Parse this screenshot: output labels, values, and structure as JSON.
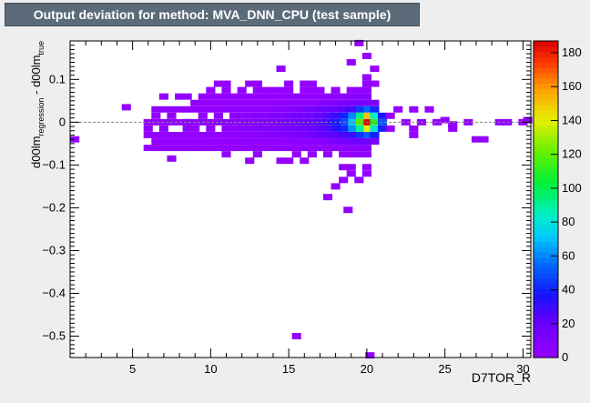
{
  "window": {
    "title": "Output deviation for method: MVA_DNN_CPU (test sample)"
  },
  "chart_data": {
    "type": "heatmap",
    "xlabel": "D7TOR_R",
    "ylabel_main": "d00lm",
    "ylabel_sub1": "regression",
    "ylabel_mid": " - d00lm",
    "ylabel_sub2": "true",
    "xlim": [
      1,
      30.5
    ],
    "ylim": [
      -0.55,
      0.19
    ],
    "xticks": [
      5,
      10,
      15,
      20,
      25,
      30
    ],
    "yticks": [
      0.1,
      0,
      -0.1,
      -0.2,
      -0.3,
      -0.4,
      -0.5
    ],
    "ytick_labels": [
      "0.1",
      "0",
      "−0.1",
      "−0.2",
      "−0.3",
      "−0.4",
      "−0.5"
    ],
    "zlim": [
      0,
      187
    ],
    "zticks": [
      0,
      20,
      40,
      60,
      80,
      100,
      120,
      140,
      160,
      180
    ],
    "reference_line_y": 0,
    "bin_width_x": 0.59,
    "bin_height_y": 0.0148,
    "cells": [
      [
        20,
        0.0,
        187
      ],
      [
        20,
        0.015,
        150
      ],
      [
        20,
        -0.015,
        140
      ],
      [
        19.5,
        0.0,
        120
      ],
      [
        20.5,
        0.0,
        110
      ],
      [
        19.5,
        0.015,
        95
      ],
      [
        20.5,
        0.015,
        85
      ],
      [
        19.5,
        -0.015,
        90
      ],
      [
        20.5,
        -0.015,
        80
      ],
      [
        19,
        0.0,
        70
      ],
      [
        19,
        0.015,
        60
      ],
      [
        19,
        -0.015,
        62
      ],
      [
        20,
        0.03,
        55
      ],
      [
        20,
        -0.03,
        52
      ],
      [
        21,
        0.0,
        50
      ],
      [
        21,
        0.015,
        38
      ],
      [
        21,
        -0.015,
        40
      ],
      [
        19.5,
        0.03,
        45
      ],
      [
        20.5,
        0.03,
        42
      ],
      [
        19.5,
        -0.03,
        44
      ],
      [
        20.5,
        -0.03,
        40
      ],
      [
        18.5,
        0.0,
        48
      ],
      [
        18.5,
        0.015,
        40
      ],
      [
        18.5,
        -0.015,
        42
      ],
      [
        18,
        0.0,
        38
      ],
      [
        18,
        0.015,
        32
      ],
      [
        18,
        -0.015,
        34
      ],
      [
        17.5,
        0.0,
        30
      ],
      [
        17.5,
        0.015,
        26
      ],
      [
        17.5,
        -0.015,
        27
      ],
      [
        17,
        0.0,
        26
      ],
      [
        17,
        0.015,
        22
      ],
      [
        17,
        -0.015,
        24
      ],
      [
        16.5,
        0.0,
        22
      ],
      [
        16.5,
        0.015,
        18
      ],
      [
        16.5,
        -0.015,
        20
      ],
      [
        16,
        0.0,
        20
      ],
      [
        16,
        0.015,
        16
      ],
      [
        16,
        -0.015,
        18
      ],
      [
        15.5,
        0.0,
        18
      ],
      [
        15.5,
        0.015,
        15
      ],
      [
        15.5,
        -0.015,
        16
      ],
      [
        15,
        0.0,
        16
      ],
      [
        15,
        0.015,
        12
      ],
      [
        15,
        -0.015,
        14
      ],
      [
        14.5,
        0.0,
        14
      ],
      [
        14.5,
        0.015,
        10
      ],
      [
        14.5,
        -0.015,
        12
      ],
      [
        14,
        0.0,
        12
      ],
      [
        14,
        0.015,
        9
      ],
      [
        14,
        -0.015,
        10
      ],
      [
        13.5,
        0.0,
        10
      ],
      [
        13.5,
        0.015,
        8
      ],
      [
        13.5,
        -0.015,
        9
      ],
      [
        13,
        0.0,
        9
      ],
      [
        13,
        0.015,
        7
      ],
      [
        13,
        -0.015,
        8
      ],
      [
        12.5,
        0.0,
        8
      ],
      [
        12.5,
        0.015,
        6
      ],
      [
        12.5,
        -0.015,
        7
      ],
      [
        12,
        0.0,
        7
      ],
      [
        12,
        0.015,
        5
      ],
      [
        12,
        -0.015,
        6
      ],
      [
        11.5,
        0.0,
        6
      ],
      [
        11.5,
        0.015,
        5
      ],
      [
        11.5,
        -0.015,
        5
      ],
      [
        11,
        0.0,
        6
      ],
      [
        11,
        -0.015,
        5
      ],
      [
        10.5,
        0.0,
        5
      ],
      [
        10.5,
        0.015,
        4
      ],
      [
        10,
        0.0,
        5
      ],
      [
        10,
        -0.015,
        4
      ],
      [
        9.5,
        0.0,
        4
      ],
      [
        9.5,
        0.015,
        3
      ],
      [
        9,
        0.0,
        4
      ],
      [
        9,
        -0.015,
        3
      ],
      [
        8.5,
        0.0,
        6
      ],
      [
        8.5,
        -0.015,
        3
      ],
      [
        8,
        0.0,
        3
      ],
      [
        7.5,
        0.0,
        3
      ],
      [
        7.5,
        0.015,
        2
      ],
      [
        7,
        0.0,
        3
      ],
      [
        7,
        -0.015,
        2
      ],
      [
        6.5,
        0.0,
        2
      ],
      [
        6.5,
        0.015,
        2
      ],
      [
        6,
        0.0,
        2
      ],
      [
        6,
        -0.015,
        2
      ],
      [
        17,
        0.03,
        18
      ],
      [
        17.5,
        0.03,
        20
      ],
      [
        18,
        0.03,
        22
      ],
      [
        18.5,
        0.03,
        25
      ],
      [
        19,
        0.03,
        28
      ],
      [
        16.5,
        0.03,
        14
      ],
      [
        16,
        0.03,
        12
      ],
      [
        15.5,
        0.03,
        10
      ],
      [
        15,
        0.03,
        9
      ],
      [
        14.5,
        0.03,
        8
      ],
      [
        14,
        0.03,
        6
      ],
      [
        13.5,
        0.03,
        5
      ],
      [
        13,
        0.03,
        4
      ],
      [
        12.5,
        0.03,
        4
      ],
      [
        12,
        0.03,
        3
      ],
      [
        11.5,
        0.03,
        3
      ],
      [
        11,
        0.03,
        2
      ],
      [
        10.5,
        0.03,
        2
      ],
      [
        10,
        0.03,
        2
      ],
      [
        9.5,
        0.03,
        2
      ],
      [
        9,
        0.03,
        2
      ],
      [
        8.5,
        0.03,
        2
      ],
      [
        8,
        0.03,
        2
      ],
      [
        7.5,
        0.03,
        2
      ],
      [
        7,
        0.03,
        2
      ],
      [
        6.5,
        0.03,
        2
      ],
      [
        17,
        -0.03,
        20
      ],
      [
        17.5,
        -0.03,
        22
      ],
      [
        18,
        -0.03,
        24
      ],
      [
        18.5,
        -0.03,
        27
      ],
      [
        19,
        -0.03,
        30
      ],
      [
        16.5,
        -0.03,
        16
      ],
      [
        16,
        -0.03,
        14
      ],
      [
        15.5,
        -0.03,
        12
      ],
      [
        15,
        -0.03,
        10
      ],
      [
        14.5,
        -0.03,
        9
      ],
      [
        14,
        -0.03,
        7
      ],
      [
        13.5,
        -0.03,
        6
      ],
      [
        13,
        -0.03,
        5
      ],
      [
        12.5,
        -0.03,
        4
      ],
      [
        12,
        -0.03,
        4
      ],
      [
        11.5,
        -0.03,
        3
      ],
      [
        11,
        -0.03,
        3
      ],
      [
        10.5,
        -0.03,
        2
      ],
      [
        10,
        -0.03,
        2
      ],
      [
        9.5,
        -0.03,
        2
      ],
      [
        9,
        -0.03,
        2
      ],
      [
        8.5,
        -0.03,
        2
      ],
      [
        8,
        -0.03,
        2
      ],
      [
        7.5,
        -0.03,
        2
      ],
      [
        7,
        -0.03,
        2
      ],
      [
        6.5,
        -0.03,
        2
      ],
      [
        6,
        -0.03,
        2
      ],
      [
        18,
        0.045,
        10
      ],
      [
        18.5,
        0.045,
        12
      ],
      [
        19,
        0.045,
        14
      ],
      [
        19.5,
        0.045,
        16
      ],
      [
        20,
        0.045,
        14
      ],
      [
        20.5,
        0.045,
        10
      ],
      [
        17.5,
        0.045,
        8
      ],
      [
        17,
        0.045,
        6
      ],
      [
        16.5,
        0.045,
        5
      ],
      [
        16,
        0.045,
        4
      ],
      [
        15.5,
        0.045,
        4
      ],
      [
        15,
        0.045,
        3
      ],
      [
        14.5,
        0.045,
        3
      ],
      [
        14,
        0.045,
        2
      ],
      [
        13.5,
        0.045,
        2
      ],
      [
        13,
        0.045,
        2
      ],
      [
        12.5,
        0.045,
        2
      ],
      [
        12,
        0.045,
        2
      ],
      [
        11.5,
        0.045,
        2
      ],
      [
        11,
        0.045,
        2
      ],
      [
        10.5,
        0.045,
        1
      ],
      [
        10,
        0.045,
        1
      ],
      [
        9.5,
        0.045,
        1
      ],
      [
        9,
        0.045,
        1
      ],
      [
        18,
        -0.045,
        12
      ],
      [
        18.5,
        -0.045,
        14
      ],
      [
        19,
        -0.045,
        16
      ],
      [
        19.5,
        -0.045,
        18
      ],
      [
        20,
        -0.045,
        16
      ],
      [
        20.5,
        -0.045,
        12
      ],
      [
        17.5,
        -0.045,
        9
      ],
      [
        17,
        -0.045,
        7
      ],
      [
        16.5,
        -0.045,
        6
      ],
      [
        16,
        -0.045,
        5
      ],
      [
        15.5,
        -0.045,
        4
      ],
      [
        15,
        -0.045,
        4
      ],
      [
        14.5,
        -0.045,
        3
      ],
      [
        14,
        -0.045,
        3
      ],
      [
        13.5,
        -0.045,
        2
      ],
      [
        13,
        -0.045,
        2
      ],
      [
        12.5,
        -0.045,
        2
      ],
      [
        12,
        -0.045,
        2
      ],
      [
        11.5,
        -0.045,
        2
      ],
      [
        11,
        -0.045,
        2
      ],
      [
        10.5,
        -0.045,
        2
      ],
      [
        10,
        -0.045,
        2
      ],
      [
        9.5,
        -0.045,
        1
      ],
      [
        9,
        -0.045,
        1
      ],
      [
        8.5,
        -0.045,
        1
      ],
      [
        8,
        -0.045,
        1
      ],
      [
        7.5,
        -0.045,
        1
      ],
      [
        7,
        -0.045,
        1
      ],
      [
        6.5,
        -0.045,
        1
      ],
      [
        19.5,
        0.06,
        8
      ],
      [
        20,
        0.06,
        6
      ],
      [
        19,
        0.06,
        5
      ],
      [
        18.5,
        0.06,
        4
      ],
      [
        18,
        0.06,
        3
      ],
      [
        17.5,
        0.06,
        3
      ],
      [
        17,
        0.06,
        2
      ],
      [
        16.5,
        0.06,
        2
      ],
      [
        16,
        0.06,
        2
      ],
      [
        15.5,
        0.06,
        2
      ],
      [
        15,
        0.06,
        2
      ],
      [
        14.5,
        0.06,
        1
      ],
      [
        14,
        0.06,
        1
      ],
      [
        13.5,
        0.06,
        1
      ],
      [
        13,
        0.06,
        1
      ],
      [
        12.5,
        0.06,
        1
      ],
      [
        12,
        0.06,
        1
      ],
      [
        11.5,
        0.06,
        1
      ],
      [
        11,
        0.06,
        1
      ],
      [
        10.5,
        0.06,
        1
      ],
      [
        10,
        0.06,
        1
      ],
      [
        9.5,
        0.06,
        1
      ],
      [
        8.5,
        0.06,
        1
      ],
      [
        8,
        0.06,
        1
      ],
      [
        7,
        0.06,
        1
      ],
      [
        19.5,
        -0.06,
        6
      ],
      [
        20,
        -0.06,
        5
      ],
      [
        19,
        -0.06,
        4
      ],
      [
        18.5,
        -0.06,
        3
      ],
      [
        18,
        -0.06,
        3
      ],
      [
        17.5,
        -0.06,
        2
      ],
      [
        17,
        -0.06,
        2
      ],
      [
        16.5,
        -0.06,
        2
      ],
      [
        16,
        -0.06,
        2
      ],
      [
        15.5,
        -0.06,
        1
      ],
      [
        15,
        -0.06,
        1
      ],
      [
        14.5,
        -0.06,
        1
      ],
      [
        14,
        -0.06,
        1
      ],
      [
        13.5,
        -0.06,
        1
      ],
      [
        13,
        -0.06,
        1
      ],
      [
        12.5,
        -0.06,
        1
      ],
      [
        12,
        -0.06,
        1
      ],
      [
        11.5,
        -0.06,
        1
      ],
      [
        11,
        -0.06,
        1
      ],
      [
        10.5,
        -0.06,
        1
      ],
      [
        10,
        -0.06,
        1
      ],
      [
        9.5,
        -0.06,
        1
      ],
      [
        9,
        -0.06,
        1
      ],
      [
        8.5,
        -0.06,
        1
      ],
      [
        8,
        -0.06,
        1
      ],
      [
        7.5,
        -0.06,
        1
      ],
      [
        7,
        -0.06,
        1
      ],
      [
        6.5,
        -0.06,
        1
      ],
      [
        6,
        -0.06,
        1
      ],
      [
        19.5,
        0.075,
        3
      ],
      [
        20,
        0.075,
        2
      ],
      [
        19,
        0.075,
        2
      ],
      [
        18,
        0.075,
        1
      ],
      [
        17,
        0.075,
        1
      ],
      [
        16.5,
        0.075,
        1
      ],
      [
        16,
        0.075,
        1
      ],
      [
        15,
        0.075,
        1
      ],
      [
        14.5,
        0.075,
        1
      ],
      [
        14,
        0.075,
        1
      ],
      [
        13.5,
        0.075,
        1
      ],
      [
        13,
        0.075,
        1
      ],
      [
        12,
        0.075,
        1
      ],
      [
        11,
        0.075,
        1
      ],
      [
        10,
        0.075,
        1
      ],
      [
        20.5,
        0.09,
        1
      ],
      [
        20,
        0.09,
        1
      ],
      [
        16.5,
        0.09,
        1
      ],
      [
        16,
        0.09,
        1
      ],
      [
        15,
        0.09,
        1
      ],
      [
        13,
        0.09,
        1
      ],
      [
        12.5,
        0.09,
        1
      ],
      [
        11,
        0.09,
        1
      ],
      [
        10.5,
        0.09,
        1
      ],
      [
        20,
        0.105,
        1
      ],
      [
        20.5,
        0.125,
        1
      ],
      [
        19,
        0.14,
        1
      ],
      [
        20,
        0.155,
        1
      ],
      [
        14.5,
        0.125,
        1
      ],
      [
        19.5,
        0.185,
        1
      ],
      [
        19.5,
        -0.075,
        2
      ],
      [
        20,
        -0.075,
        2
      ],
      [
        19,
        -0.075,
        1
      ],
      [
        18.5,
        -0.075,
        1
      ],
      [
        17.5,
        -0.075,
        1
      ],
      [
        16.5,
        -0.075,
        1
      ],
      [
        15.5,
        -0.075,
        1
      ],
      [
        13,
        -0.075,
        1
      ],
      [
        11,
        -0.075,
        1
      ],
      [
        12.5,
        -0.09,
        1
      ],
      [
        14.5,
        -0.09,
        1
      ],
      [
        15,
        -0.09,
        1
      ],
      [
        16,
        -0.09,
        1
      ],
      [
        18.5,
        -0.105,
        1
      ],
      [
        19,
        -0.105,
        1
      ],
      [
        20,
        -0.105,
        1
      ],
      [
        19,
        -0.12,
        1
      ],
      [
        20,
        -0.12,
        1
      ],
      [
        18.5,
        -0.135,
        1
      ],
      [
        19.5,
        -0.135,
        1
      ],
      [
        18,
        -0.15,
        1
      ],
      [
        17.5,
        -0.175,
        1
      ],
      [
        18.8,
        -0.205,
        1
      ],
      [
        7.5,
        -0.085,
        1
      ],
      [
        8.5,
        0.0,
        1
      ],
      [
        4.6,
        0.035,
        1
      ],
      [
        1.3,
        -0.04,
        1
      ],
      [
        21.5,
        0.015,
        1
      ],
      [
        22,
        0.03,
        1
      ],
      [
        23,
        0.03,
        1
      ],
      [
        24,
        0.03,
        1
      ],
      [
        23,
        -0.015,
        1
      ],
      [
        23.5,
        0.0,
        1
      ],
      [
        24.5,
        0.0,
        1
      ],
      [
        25.5,
        -0.015,
        1
      ],
      [
        26.5,
        0.0,
        1
      ],
      [
        27,
        -0.04,
        1
      ],
      [
        27.5,
        -0.04,
        1
      ],
      [
        28.5,
        0.0,
        1
      ],
      [
        29,
        0.0,
        1
      ],
      [
        30,
        0.0,
        1
      ],
      [
        30.3,
        0.005,
        1
      ],
      [
        25,
        0.005,
        1
      ],
      [
        21.5,
        -0.015,
        1
      ],
      [
        22.5,
        0.0,
        1
      ],
      [
        23,
        -0.03,
        1
      ],
      [
        25.5,
        -0.005,
        1
      ],
      [
        15.5,
        -0.5,
        1
      ],
      [
        20.2,
        -0.545,
        1
      ]
    ]
  }
}
